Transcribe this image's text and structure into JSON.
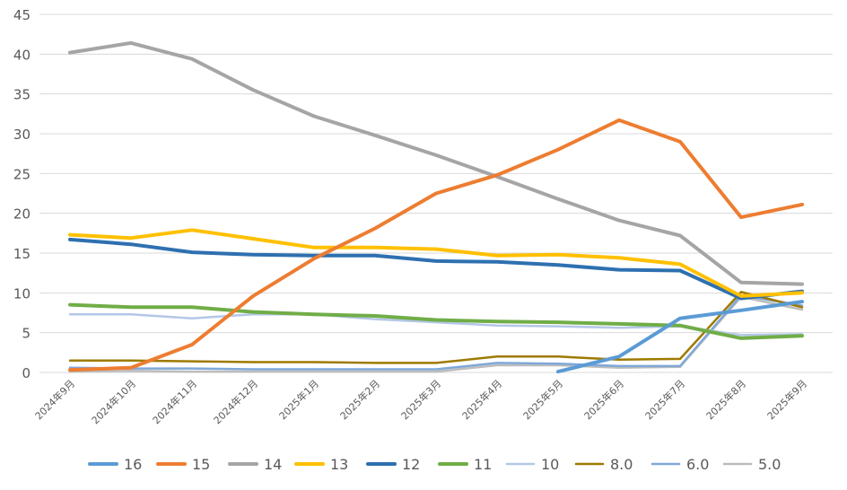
{
  "chart_data": {
    "type": "line",
    "title": "",
    "xlabel": "",
    "ylabel": "",
    "ylim": [
      0,
      45
    ],
    "yticks": [
      0,
      5,
      10,
      15,
      20,
      25,
      30,
      35,
      40,
      45
    ],
    "grid": true,
    "legend_position": "bottom",
    "categories": [
      "2024年9月",
      "2024年10月",
      "2024年11月",
      "2024年12月",
      "2025年1月",
      "2025年2月",
      "2025年3月",
      "2025年4月",
      "2025年5月",
      "2025年6月",
      "2025年7月",
      "2025年8月",
      "2025年9月"
    ],
    "series": [
      {
        "name": "16",
        "color": "#5B9BD5",
        "width": 4,
        "values": [
          null,
          null,
          null,
          null,
          null,
          null,
          null,
          null,
          0.1,
          2.0,
          6.8,
          7.8,
          8.9
        ]
      },
      {
        "name": "15",
        "color": "#ED7D31",
        "width": 4,
        "values": [
          0.3,
          0.6,
          3.5,
          9.6,
          14.3,
          18.1,
          22.5,
          24.8,
          28.0,
          31.7,
          29.0,
          19.5,
          21.1
        ]
      },
      {
        "name": "14",
        "color": "#A5A5A5",
        "width": 4,
        "values": [
          40.2,
          41.4,
          39.4,
          35.5,
          32.2,
          29.8,
          27.3,
          24.6,
          21.8,
          19.1,
          17.2,
          11.3,
          11.1
        ]
      },
      {
        "name": "13",
        "color": "#FFC000",
        "width": 4,
        "values": [
          17.3,
          16.9,
          17.9,
          16.8,
          15.7,
          15.7,
          15.5,
          14.7,
          14.8,
          14.4,
          13.6,
          9.6,
          10.0
        ]
      },
      {
        "name": "12",
        "color": "#2E70B0",
        "width": 4,
        "values": [
          16.7,
          16.1,
          15.1,
          14.8,
          14.7,
          14.7,
          14.0,
          13.9,
          13.5,
          12.9,
          12.8,
          9.3,
          10.2
        ]
      },
      {
        "name": "11",
        "color": "#70AD47",
        "width": 4,
        "values": [
          8.5,
          8.2,
          8.2,
          7.6,
          7.3,
          7.1,
          6.6,
          6.4,
          6.3,
          6.1,
          5.9,
          4.3,
          4.6
        ]
      },
      {
        "name": "10",
        "color": "#B4C7E7",
        "width": 2.5,
        "values": [
          7.3,
          7.3,
          6.8,
          7.3,
          7.3,
          6.7,
          6.3,
          5.9,
          5.8,
          5.6,
          5.8,
          4.7,
          4.8
        ]
      },
      {
        "name": "8.0",
        "color": "#9E7A00",
        "width": 2.5,
        "values": [
          1.5,
          1.5,
          1.4,
          1.3,
          1.3,
          1.2,
          1.2,
          2.0,
          2.0,
          1.6,
          1.7,
          10.1,
          8.2
        ]
      },
      {
        "name": "6.0",
        "color": "#7FA8D8",
        "width": 2.5,
        "values": [
          0.6,
          0.5,
          0.5,
          0.4,
          0.4,
          0.4,
          0.4,
          1.2,
          1.1,
          0.8,
          0.8,
          9.7,
          8.4
        ]
      },
      {
        "name": "5.0",
        "color": "#BDBDBD",
        "width": 2.5,
        "values": [
          0.1,
          0.2,
          0.1,
          0.1,
          0.1,
          0.1,
          0.1,
          0.9,
          0.9,
          0.6,
          0.7,
          9.5,
          7.9
        ]
      }
    ]
  }
}
